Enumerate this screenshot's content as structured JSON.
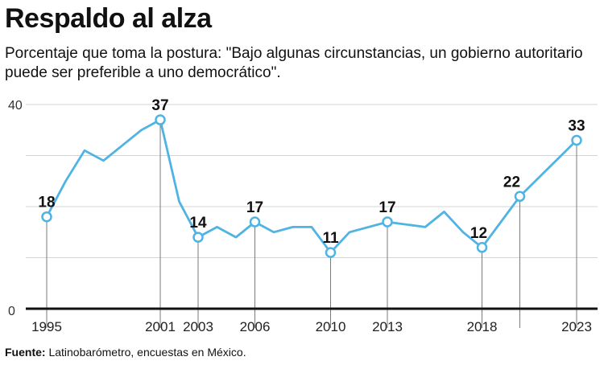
{
  "title": "Respaldo al alza",
  "subtitle": "Porcentaje que toma la postura: \"Bajo algunas circunstancias, un gobierno autoritario puede ser preferible a uno democrático\".",
  "footer": {
    "label": "Fuente:",
    "text": " Latinobarómetro, encuestas en México."
  },
  "chart_data": {
    "type": "line",
    "title": "Respaldo al alza",
    "xlabel": "",
    "ylabel": "",
    "ylim": [
      0,
      40
    ],
    "yticks": [
      0,
      40
    ],
    "grid": true,
    "line_color": "#4fb3e3",
    "x_tick_labels": [
      "1995",
      "2001",
      "2003",
      "2006",
      "2010",
      "2013",
      "2018",
      "2023"
    ],
    "series": [
      {
        "values": [
          {
            "x": 1995,
            "y": 18
          },
          {
            "x": 1996,
            "y": 25
          },
          {
            "x": 1997,
            "y": 31
          },
          {
            "x": 1998,
            "y": 29
          },
          {
            "x": 2000,
            "y": 35
          },
          {
            "x": 2001,
            "y": 37
          },
          {
            "x": 2002,
            "y": 21
          },
          {
            "x": 2003,
            "y": 14
          },
          {
            "x": 2004,
            "y": 16
          },
          {
            "x": 2005,
            "y": 14
          },
          {
            "x": 2006,
            "y": 17
          },
          {
            "x": 2007,
            "y": 15
          },
          {
            "x": 2008,
            "y": 16
          },
          {
            "x": 2009,
            "y": 16
          },
          {
            "x": 2010,
            "y": 11
          },
          {
            "x": 2011,
            "y": 15
          },
          {
            "x": 2013,
            "y": 17
          },
          {
            "x": 2015,
            "y": 16
          },
          {
            "x": 2016,
            "y": 19
          },
          {
            "x": 2017,
            "y": 15
          },
          {
            "x": 2018,
            "y": 12
          },
          {
            "x": 2020,
            "y": 22
          },
          {
            "x": 2023,
            "y": 33
          }
        ]
      }
    ],
    "highlighted": [
      {
        "x": 1995,
        "y": 18,
        "label": "18"
      },
      {
        "x": 2001,
        "y": 37,
        "label": "37"
      },
      {
        "x": 2003,
        "y": 14,
        "label": "14"
      },
      {
        "x": 2006,
        "y": 17,
        "label": "17"
      },
      {
        "x": 2010,
        "y": 11,
        "label": "11"
      },
      {
        "x": 2013,
        "y": 17,
        "label": "17"
      },
      {
        "x": 2018,
        "y": 12,
        "label": "12"
      },
      {
        "x": 2020,
        "y": 22,
        "label": "22"
      },
      {
        "x": 2023,
        "y": 33,
        "label": "33"
      }
    ]
  }
}
